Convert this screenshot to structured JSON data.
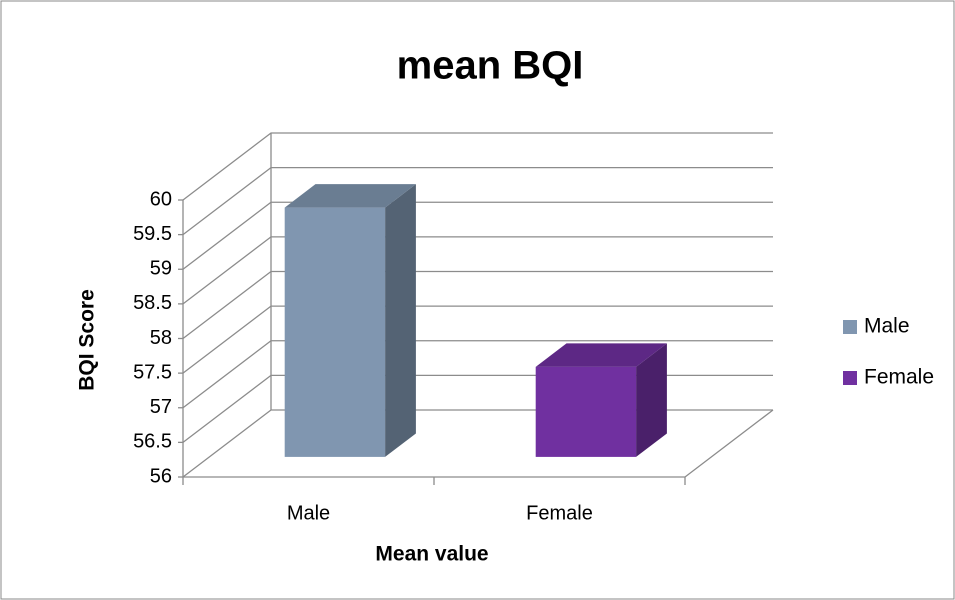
{
  "chart_data": {
    "type": "bar3d",
    "title": "mean BQI",
    "x_label": "Mean value",
    "y_label": "BQI Score",
    "categories": [
      "Male",
      "Female"
    ],
    "series": [
      {
        "name": "Male",
        "color": "#8096b0",
        "values": [
          59.6,
          null
        ]
      },
      {
        "name": "Female",
        "color": "#7030a0",
        "values": [
          null,
          57.3
        ]
      }
    ],
    "ylim": [
      56,
      60
    ],
    "yticks": [
      56,
      56.5,
      57,
      57.5,
      58,
      58.5,
      59,
      59.5,
      60
    ],
    "grid": true,
    "legend": "right"
  }
}
